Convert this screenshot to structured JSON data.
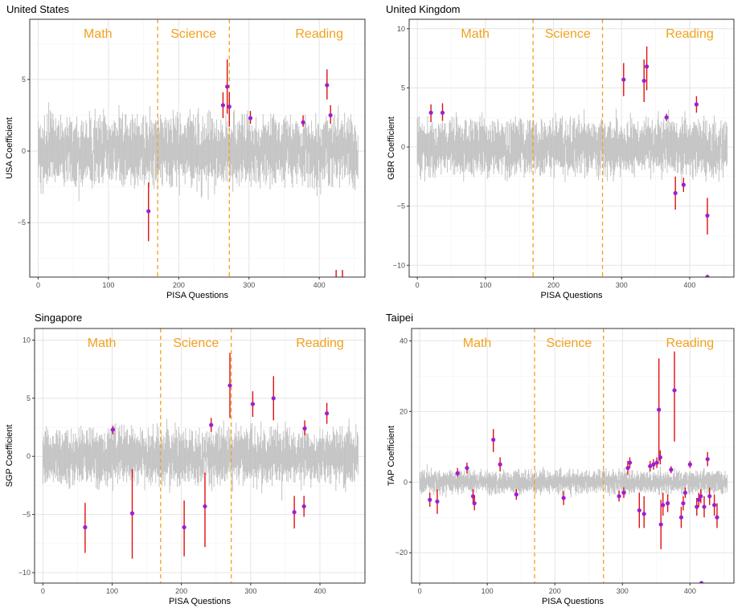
{
  "chart_data": [
    {
      "type": "scatter",
      "title": "United States",
      "xlabel": "PISA Questions",
      "ylabel": "USA Coefficient",
      "xlim": [
        -12,
        465
      ],
      "ylim": [
        -8.8,
        9.2
      ],
      "xticks": [
        0,
        100,
        200,
        300,
        400
      ],
      "yticks": [
        -5,
        0,
        5
      ],
      "grid": true,
      "vlines": [
        170,
        272
      ],
      "region_labels": [
        {
          "text": "Math",
          "x": 85
        },
        {
          "text": "Science",
          "x": 221
        },
        {
          "text": "Reading",
          "x": 400
        }
      ],
      "significant": [
        {
          "x": 157,
          "y": -4.2,
          "lo": -6.3,
          "hi": -2.2
        },
        {
          "x": 263,
          "y": 3.2,
          "lo": 2.3,
          "hi": 4.1
        },
        {
          "x": 269,
          "y": 4.5,
          "lo": 2.6,
          "hi": 6.4
        },
        {
          "x": 272,
          "y": 3.1,
          "lo": 1.7,
          "hi": 4.1
        },
        {
          "x": 302,
          "y": 2.3,
          "lo": 1.9,
          "hi": 2.8
        },
        {
          "x": 377,
          "y": 2.0,
          "lo": 1.7,
          "hi": 2.5
        },
        {
          "x": 411,
          "y": 4.6,
          "lo": 3.6,
          "hi": 5.7
        },
        {
          "x": 416,
          "y": 2.5,
          "lo": 1.9,
          "hi": 3.2
        },
        {
          "x": 424,
          "y": -8.9,
          "lo": -9.6,
          "hi": -8.3
        },
        {
          "x": 433,
          "y": -8.9,
          "lo": -9.6,
          "hi": -8.3
        }
      ]
    },
    {
      "type": "scatter",
      "title": "United Kingdom",
      "xlabel": "PISA Questions",
      "ylabel": "GBR Coefficient",
      "xlim": [
        -12,
        465
      ],
      "ylim": [
        -11.0,
        10.8
      ],
      "xticks": [
        0,
        100,
        200,
        300,
        400
      ],
      "yticks": [
        -10,
        -5,
        0,
        5,
        10
      ],
      "grid": true,
      "vlines": [
        170,
        272
      ],
      "region_labels": [
        {
          "text": "Math",
          "x": 85
        },
        {
          "text": "Science",
          "x": 221
        },
        {
          "text": "Reading",
          "x": 400
        }
      ],
      "significant": [
        {
          "x": 20,
          "y": 2.9,
          "lo": 2.1,
          "hi": 3.6
        },
        {
          "x": 37,
          "y": 2.9,
          "lo": 2.2,
          "hi": 3.7
        },
        {
          "x": 303,
          "y": 5.7,
          "lo": 4.3,
          "hi": 7.1
        },
        {
          "x": 333,
          "y": 5.6,
          "lo": 3.8,
          "hi": 7.4
        },
        {
          "x": 337,
          "y": 6.8,
          "lo": 4.8,
          "hi": 8.5
        },
        {
          "x": 366,
          "y": 2.5,
          "lo": 2.2,
          "hi": 2.8
        },
        {
          "x": 379,
          "y": -3.9,
          "lo": -5.3,
          "hi": -2.5
        },
        {
          "x": 391,
          "y": -3.2,
          "lo": -3.8,
          "hi": -2.6
        },
        {
          "x": 410,
          "y": 3.6,
          "lo": 2.9,
          "hi": 4.3
        },
        {
          "x": 426,
          "y": -5.8,
          "lo": -7.4,
          "hi": -4.3
        },
        {
          "x": 426,
          "y": -11.0,
          "lo": -11.2,
          "hi": -10.8
        }
      ]
    },
    {
      "type": "scatter",
      "title": "Singapore",
      "xlabel": "PISA Questions",
      "ylabel": "SGP Coefficient",
      "xlim": [
        -12,
        465
      ],
      "ylim": [
        -10.9,
        11.0
      ],
      "xticks": [
        0,
        100,
        200,
        300,
        400
      ],
      "yticks": [
        -10,
        -5,
        0,
        5,
        10
      ],
      "grid": true,
      "vlines": [
        170,
        272
      ],
      "region_labels": [
        {
          "text": "Math",
          "x": 85
        },
        {
          "text": "Science",
          "x": 221
        },
        {
          "text": "Reading",
          "x": 400
        }
      ],
      "significant": [
        {
          "x": 61,
          "y": -6.1,
          "lo": -8.3,
          "hi": -4.0
        },
        {
          "x": 101,
          "y": 2.3,
          "lo": 1.9,
          "hi": 2.6
        },
        {
          "x": 129,
          "y": -4.9,
          "lo": -8.8,
          "hi": -1.1
        },
        {
          "x": 204,
          "y": -6.1,
          "lo": -8.6,
          "hi": -3.8
        },
        {
          "x": 234,
          "y": -4.3,
          "lo": -7.8,
          "hi": -1.4
        },
        {
          "x": 243,
          "y": 2.7,
          "lo": 2.1,
          "hi": 3.3
        },
        {
          "x": 270,
          "y": 6.1,
          "lo": 3.3,
          "hi": 8.9
        },
        {
          "x": 303,
          "y": 4.5,
          "lo": 3.4,
          "hi": 5.6
        },
        {
          "x": 333,
          "y": 5.0,
          "lo": 3.1,
          "hi": 6.9
        },
        {
          "x": 363,
          "y": -4.8,
          "lo": -6.2,
          "hi": -3.4
        },
        {
          "x": 377,
          "y": -4.3,
          "lo": -5.2,
          "hi": -3.4
        },
        {
          "x": 378,
          "y": 2.4,
          "lo": 1.8,
          "hi": 3.1
        },
        {
          "x": 410,
          "y": 3.7,
          "lo": 2.8,
          "hi": 4.6
        }
      ]
    },
    {
      "type": "scatter",
      "title": "Taipei",
      "xlabel": "PISA Questions",
      "ylabel": "TAP Coefficient",
      "xlim": [
        -12,
        465
      ],
      "ylim": [
        -28.6,
        43.5
      ],
      "xticks": [
        0,
        100,
        200,
        300,
        400
      ],
      "yticks": [
        -20,
        0,
        20,
        40
      ],
      "grid": true,
      "vlines": [
        170,
        272
      ],
      "region_labels": [
        {
          "text": "Math",
          "x": 85
        },
        {
          "text": "Science",
          "x": 221
        },
        {
          "text": "Reading",
          "x": 400
        }
      ],
      "significant": [
        {
          "x": 15,
          "y": -5,
          "lo": -7,
          "hi": -3
        },
        {
          "x": 26,
          "y": -5.5,
          "lo": -9,
          "hi": -2
        },
        {
          "x": 56,
          "y": 2.5,
          "lo": 1.5,
          "hi": 4
        },
        {
          "x": 70,
          "y": 4,
          "lo": 2.5,
          "hi": 5.5
        },
        {
          "x": 79,
          "y": -4,
          "lo": -6,
          "hi": -2
        },
        {
          "x": 81,
          "y": -6,
          "lo": -8,
          "hi": -4
        },
        {
          "x": 109,
          "y": 12,
          "lo": 8.5,
          "hi": 15
        },
        {
          "x": 119,
          "y": 5,
          "lo": 3,
          "hi": 7
        },
        {
          "x": 143,
          "y": -3.5,
          "lo": -5,
          "hi": -2
        },
        {
          "x": 213,
          "y": -4.5,
          "lo": -6.5,
          "hi": -2.5
        },
        {
          "x": 295,
          "y": -4,
          "lo": -5.5,
          "hi": -2.5
        },
        {
          "x": 302,
          "y": -3,
          "lo": -4.5,
          "hi": -1.5
        },
        {
          "x": 308,
          "y": 4,
          "lo": 2,
          "hi": 6
        },
        {
          "x": 311,
          "y": 5.5,
          "lo": 4,
          "hi": 7
        },
        {
          "x": 325,
          "y": -8,
          "lo": -13,
          "hi": -3
        },
        {
          "x": 332,
          "y": -9,
          "lo": -13,
          "hi": -4
        },
        {
          "x": 341,
          "y": 4.5,
          "lo": 3,
          "hi": 6
        },
        {
          "x": 346,
          "y": 5,
          "lo": 3.5,
          "hi": 6.5
        },
        {
          "x": 351,
          "y": 5.5,
          "lo": 4,
          "hi": 7
        },
        {
          "x": 354,
          "y": 20.5,
          "lo": 6,
          "hi": 35
        },
        {
          "x": 356,
          "y": 7,
          "lo": 5,
          "hi": 9
        },
        {
          "x": 357,
          "y": -12,
          "lo": -19,
          "hi": -5
        },
        {
          "x": 360,
          "y": -6.5,
          "lo": -9.5,
          "hi": -3
        },
        {
          "x": 367,
          "y": -6,
          "lo": -8.5,
          "hi": -3.5
        },
        {
          "x": 372,
          "y": 3.5,
          "lo": 2.5,
          "hi": 4.5
        },
        {
          "x": 377,
          "y": 26,
          "lo": 11.5,
          "hi": 37
        },
        {
          "x": 387,
          "y": -10,
          "lo": -13,
          "hi": -7
        },
        {
          "x": 390,
          "y": -6,
          "lo": -8,
          "hi": -4
        },
        {
          "x": 393,
          "y": -3,
          "lo": -4.5,
          "hi": -1.5
        },
        {
          "x": 400,
          "y": 5,
          "lo": 4,
          "hi": 6
        },
        {
          "x": 410,
          "y": -7,
          "lo": -9.5,
          "hi": -4.5
        },
        {
          "x": 413,
          "y": -5,
          "lo": -7,
          "hi": -3
        },
        {
          "x": 416,
          "y": -4,
          "lo": -6,
          "hi": -2
        },
        {
          "x": 417,
          "y": -28.6,
          "lo": -28.6,
          "hi": -28.6
        },
        {
          "x": 421,
          "y": -7,
          "lo": -10,
          "hi": -4
        },
        {
          "x": 426,
          "y": 6.5,
          "lo": 4.5,
          "hi": 8.5
        },
        {
          "x": 429,
          "y": -4,
          "lo": -6.5,
          "hi": -1.5
        },
        {
          "x": 436,
          "y": -6.5,
          "lo": -9.5,
          "hi": -3.5
        },
        {
          "x": 440,
          "y": -10,
          "lo": -13,
          "hi": -6
        }
      ]
    }
  ],
  "colors": {
    "noise": "#c4c4c4",
    "errorbar": "#e01010",
    "point": "#9b1fd6",
    "divider": "#f2a11b",
    "region_label": "#f2a11b",
    "grid_major": "#e4e4e4",
    "grid_minor": "#f3f3f3",
    "panel_border": "#333333"
  }
}
